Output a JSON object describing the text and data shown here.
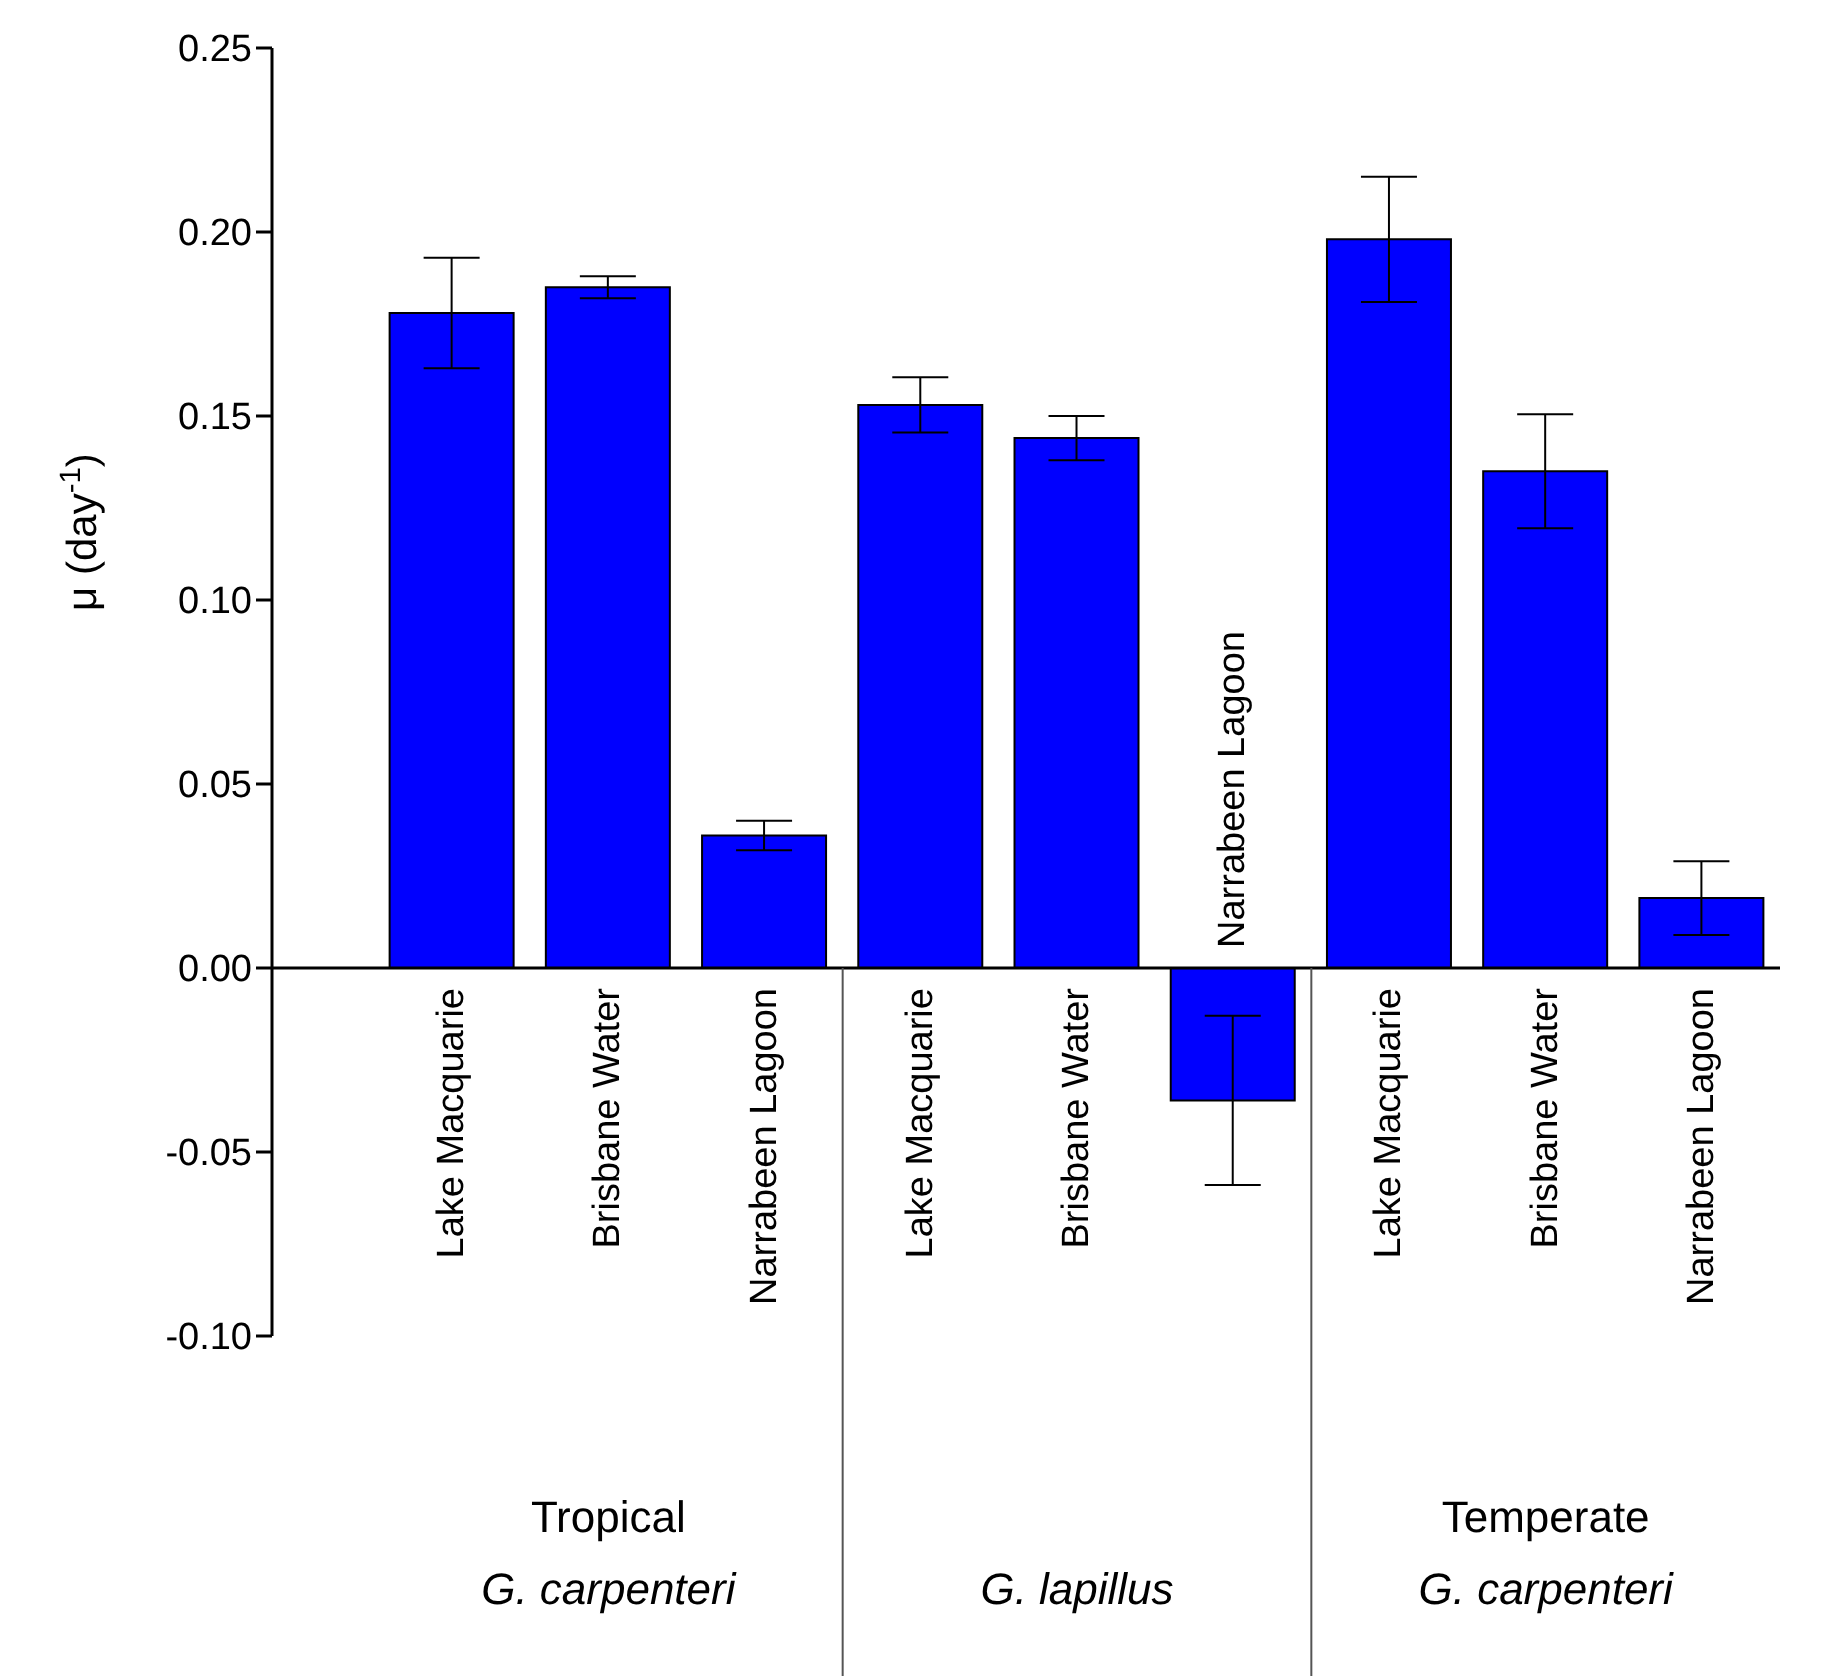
{
  "chart_data": {
    "type": "bar",
    "ylabel": "μ (day$^{-1}$)",
    "categories": [
      "Lake Macquarie",
      "Brisbane Water",
      "Narrabeen Lagoon",
      "Lake Macquarie",
      "Brisbane Water",
      "Narrabeen Lagoon",
      "Lake Macquarie",
      "Brisbane Water",
      "Narrabeen Lagoon"
    ],
    "values": [
      0.178,
      0.185,
      0.036,
      0.153,
      0.144,
      -0.036,
      0.198,
      0.135,
      0.019
    ],
    "errors": [
      0.015,
      0.003,
      0.004,
      0.0075,
      0.006,
      0.023,
      0.017,
      0.0155,
      0.01
    ],
    "color": "#0000ff",
    "ylim": [
      -0.1,
      0.25
    ],
    "yticks": [
      {
        "value": -0.1,
        "label": "-0.10"
      },
      -0.05,
      {
        "value": 0,
        "label": "0.00"
      },
      0.05,
      {
        "value": 0.1,
        "label": "0.10"
      },
      0.15,
      {
        "value": 0.2,
        "label": "0.20"
      },
      0.25
    ],
    "annotations": [
      "Tropical\nG. carpenteri",
      "G. lapillus",
      "Temperate\nG. carpenteri"
    ],
    "grid": false,
    "legend": false
  }
}
